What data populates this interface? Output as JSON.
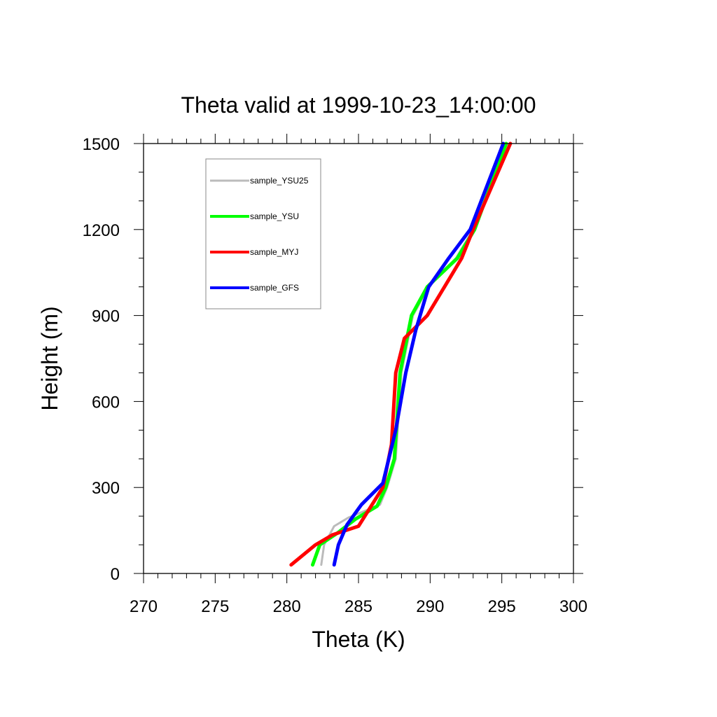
{
  "chart_data": {
    "type": "line",
    "title": "Theta valid at 1999-10-23_14:00:00",
    "xlabel": "Theta (K)",
    "ylabel": "Height (m)",
    "xlim": [
      270,
      300
    ],
    "ylim": [
      0,
      1500
    ],
    "x_ticks": [
      "270",
      "275",
      "280",
      "285",
      "290",
      "295",
      "300"
    ],
    "y_ticks": [
      "0",
      "300",
      "600",
      "900",
      "1200",
      "1500"
    ],
    "grid": false,
    "legend_position": "top-left",
    "series": [
      {
        "name": "sample_YSU25",
        "color": "#bbbbbb",
        "points": [
          [
            282.4,
            30
          ],
          [
            282.6,
            100
          ],
          [
            283.3,
            165
          ],
          [
            284.3,
            195
          ],
          [
            286.5,
            240
          ],
          [
            287.0,
            300
          ],
          [
            287.6,
            400
          ],
          [
            288.0,
            700
          ],
          [
            288.8,
            900
          ],
          [
            289.9,
            1000
          ],
          [
            291.8,
            1100
          ],
          [
            293.0,
            1200
          ],
          [
            295.4,
            1500
          ]
        ]
      },
      {
        "name": "sample_YSU",
        "color": "#00ff00",
        "points": [
          [
            281.8,
            30
          ],
          [
            282.3,
            100
          ],
          [
            283.5,
            140
          ],
          [
            284.8,
            190
          ],
          [
            286.3,
            235
          ],
          [
            286.9,
            300
          ],
          [
            287.5,
            400
          ],
          [
            287.9,
            700
          ],
          [
            288.7,
            900
          ],
          [
            289.8,
            1000
          ],
          [
            291.9,
            1100
          ],
          [
            293.1,
            1200
          ],
          [
            295.3,
            1500
          ]
        ]
      },
      {
        "name": "sample_MYJ",
        "color": "#ff0000",
        "points": [
          [
            280.3,
            30
          ],
          [
            282.0,
            100
          ],
          [
            283.2,
            135
          ],
          [
            285.0,
            165
          ],
          [
            286.7,
            300
          ],
          [
            287.3,
            450
          ],
          [
            287.6,
            700
          ],
          [
            288.2,
            820
          ],
          [
            289.8,
            900
          ],
          [
            291.0,
            1000
          ],
          [
            292.2,
            1100
          ],
          [
            293.0,
            1200
          ],
          [
            295.6,
            1500
          ]
        ]
      },
      {
        "name": "sample_GFS",
        "color": "#0000ff",
        "points": [
          [
            283.3,
            30
          ],
          [
            283.6,
            100
          ],
          [
            284.2,
            170
          ],
          [
            285.2,
            240
          ],
          [
            286.7,
            315
          ],
          [
            287.6,
            500
          ],
          [
            288.3,
            700
          ],
          [
            289.0,
            850
          ],
          [
            289.6,
            950
          ],
          [
            289.9,
            1000
          ],
          [
            291.3,
            1100
          ],
          [
            292.8,
            1200
          ],
          [
            295.1,
            1500
          ]
        ]
      }
    ]
  }
}
